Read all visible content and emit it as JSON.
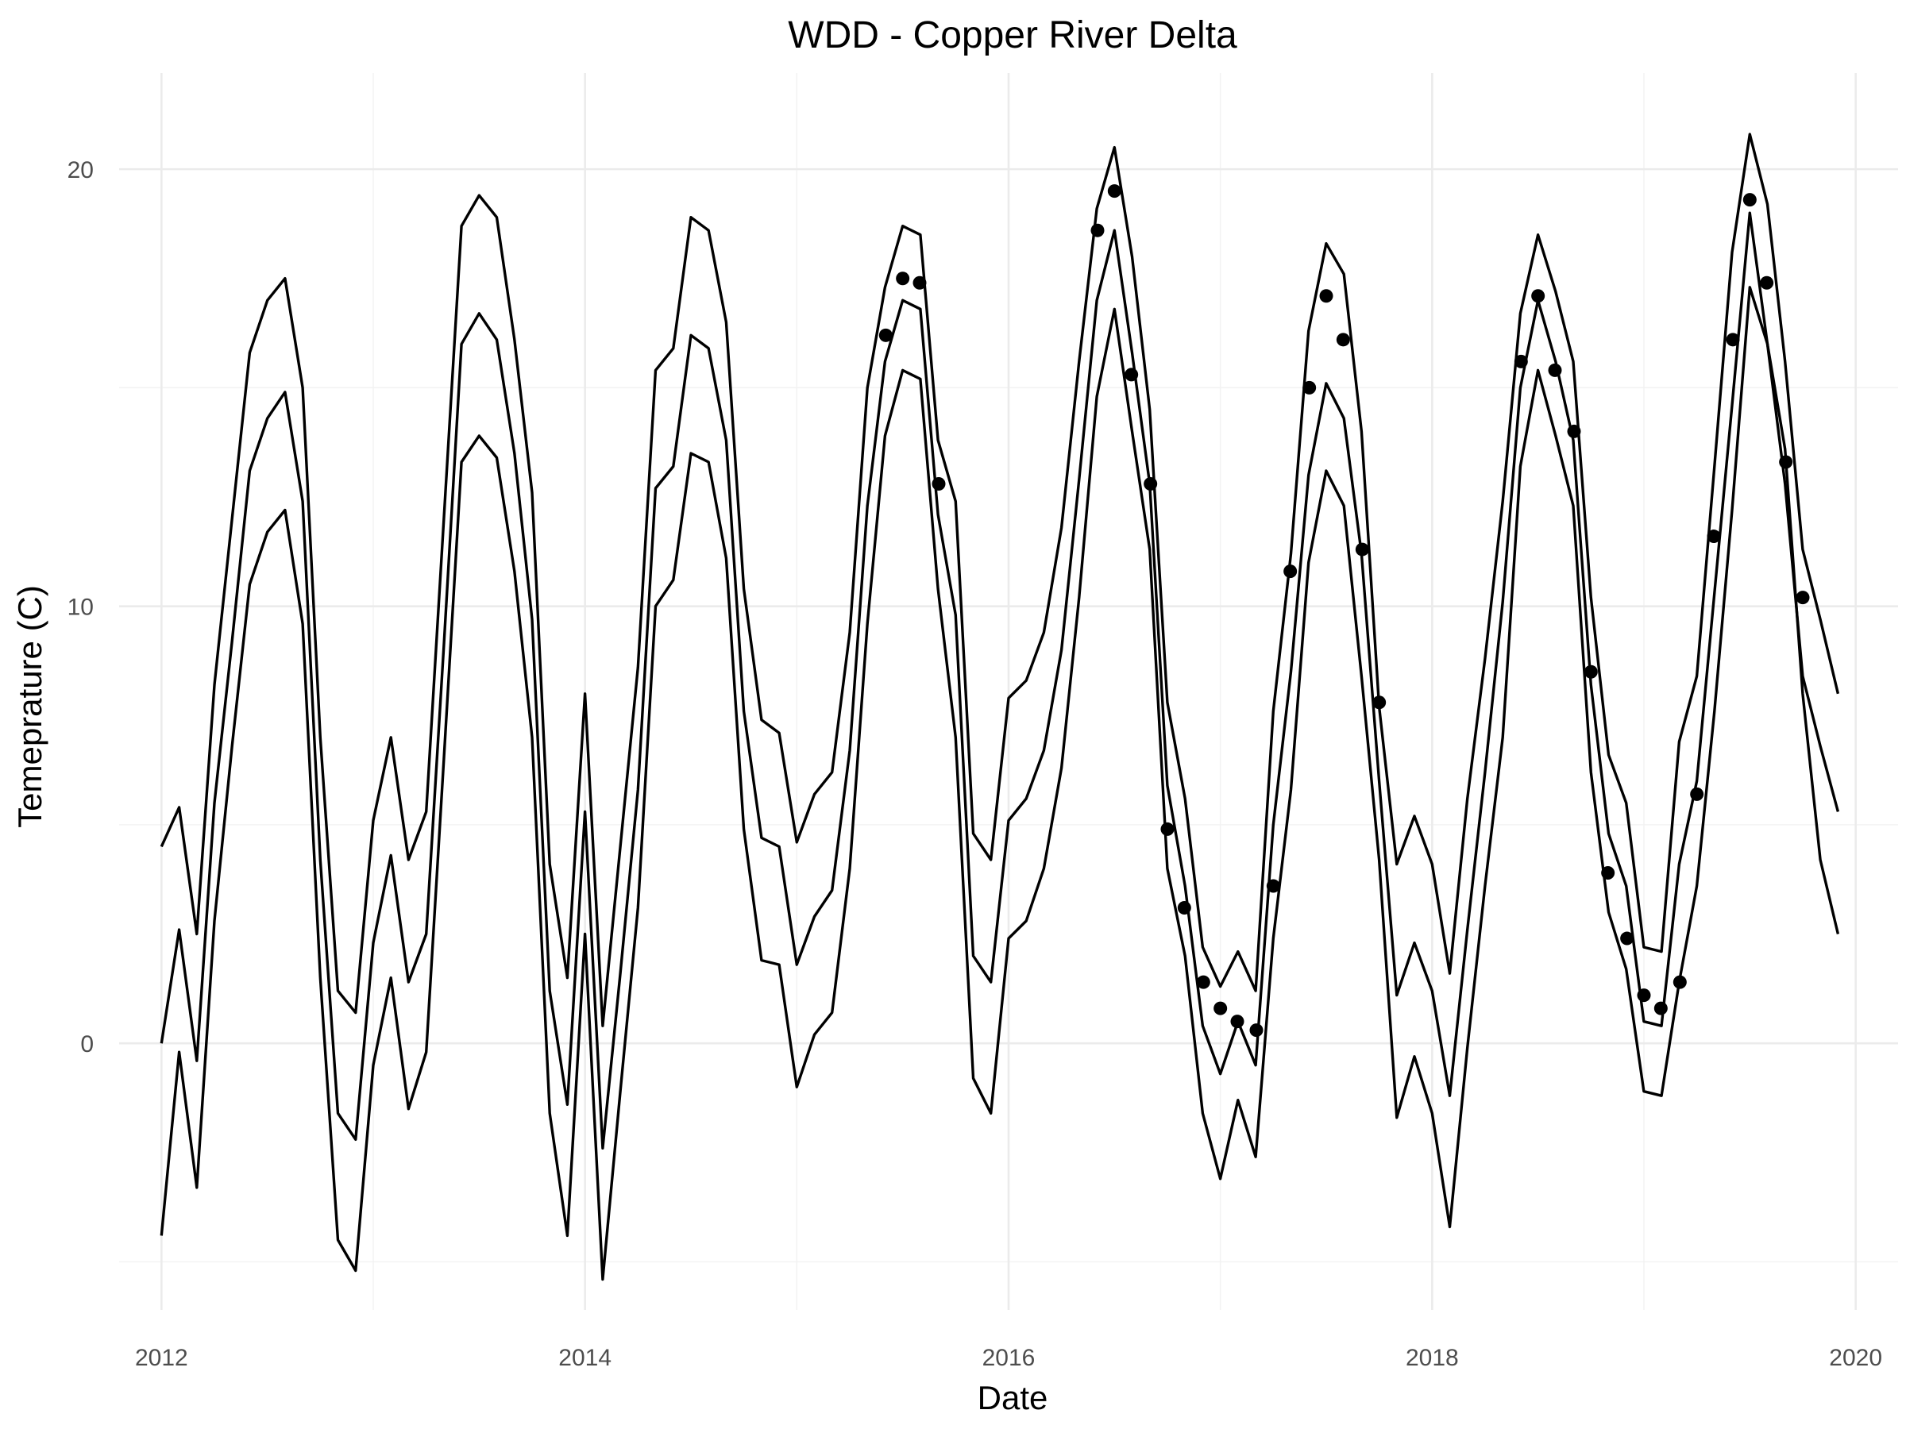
{
  "chart_data": {
    "type": "line",
    "title": "WDD - Copper River Delta",
    "xlabel": "Date",
    "ylabel": "Temeprature (C)",
    "x_ticks": [
      "2012",
      "2014",
      "2016",
      "2018",
      "2020"
    ],
    "y_ticks": [
      "0",
      "10",
      "20"
    ],
    "xlim": [
      2011.8,
      2020.2
    ],
    "ylim": [
      -6.1,
      22.2
    ],
    "grid": true,
    "legend": "none",
    "x_start": 2012.0,
    "x_step": 0.08333,
    "series": [
      {
        "values": [
          4.5,
          5.4,
          2.5,
          8.2,
          12.0,
          15.8,
          17.0,
          17.5,
          15.0,
          7.0,
          1.2,
          0.7,
          5.1,
          7.0,
          4.2,
          5.3,
          12.0,
          18.7,
          19.4,
          18.9,
          16.1,
          12.6,
          4.1,
          1.5,
          8.0,
          0.4,
          4.5,
          8.6,
          15.4,
          15.9,
          18.9,
          18.6,
          16.5,
          10.4,
          7.4,
          7.1,
          4.6,
          5.7,
          6.2,
          9.4,
          15.0,
          17.3,
          18.7,
          18.5,
          13.8,
          12.4,
          4.8,
          4.2,
          7.9,
          8.3,
          9.4,
          11.8,
          15.6,
          19.1,
          20.5,
          18.0,
          14.5,
          7.8,
          5.6,
          2.2,
          1.3,
          2.1,
          1.2,
          7.6,
          11.2,
          16.3,
          18.3,
          17.6,
          14.0,
          7.7,
          4.1,
          5.2,
          4.1,
          1.6,
          5.6,
          8.8,
          12.4,
          16.7,
          18.5,
          17.2,
          15.6,
          10.2,
          6.6,
          5.5,
          2.2,
          2.1,
          6.9,
          8.4,
          13.2,
          18.1,
          20.8,
          19.2,
          15.6,
          11.3,
          9.7,
          8.0
        ]
      },
      {
        "values": [
          0.0,
          2.6,
          -0.4,
          5.5,
          9.2,
          13.1,
          14.3,
          14.9,
          12.4,
          4.2,
          -1.6,
          -2.2,
          2.3,
          4.3,
          1.4,
          2.5,
          9.1,
          16.0,
          16.7,
          16.1,
          13.5,
          9.7,
          1.2,
          -1.4,
          5.3,
          -2.4,
          1.6,
          5.8,
          12.7,
          13.2,
          16.2,
          15.9,
          13.8,
          7.6,
          4.7,
          4.5,
          1.8,
          2.9,
          3.5,
          6.7,
          12.3,
          15.6,
          17.0,
          16.8,
          12.1,
          9.8,
          2.0,
          1.4,
          5.1,
          5.6,
          6.7,
          9.0,
          12.9,
          17.0,
          18.6,
          15.8,
          12.8,
          5.9,
          3.6,
          0.4,
          -0.7,
          0.5,
          -0.5,
          5.0,
          8.5,
          13.0,
          15.1,
          14.3,
          11.2,
          6.0,
          1.1,
          2.3,
          1.2,
          -1.2,
          2.6,
          6.2,
          10.1,
          15.0,
          17.0,
          15.6,
          13.8,
          8.2,
          4.8,
          3.6,
          0.5,
          0.4,
          4.1,
          6.0,
          10.3,
          14.6,
          19.0,
          16.0,
          12.8,
          8.4,
          6.8,
          5.3
        ]
      },
      {
        "values": [
          -4.4,
          -0.2,
          -3.3,
          2.8,
          6.8,
          10.5,
          11.7,
          12.2,
          9.6,
          1.5,
          -4.5,
          -5.2,
          -0.5,
          1.5,
          -1.5,
          -0.2,
          6.5,
          13.3,
          13.9,
          13.4,
          10.8,
          7.0,
          -1.6,
          -4.4,
          2.5,
          -5.4,
          -1.1,
          3.1,
          10.0,
          10.6,
          13.5,
          13.3,
          11.1,
          4.9,
          1.9,
          1.8,
          -1.0,
          0.2,
          0.7,
          4.0,
          9.6,
          13.9,
          15.4,
          15.2,
          10.4,
          7.0,
          -0.8,
          -1.6,
          2.4,
          2.8,
          4.0,
          6.3,
          10.2,
          14.8,
          16.8,
          14.0,
          11.3,
          4.0,
          2.0,
          -1.6,
          -3.1,
          -1.3,
          -2.6,
          2.4,
          5.8,
          11.0,
          13.1,
          12.3,
          8.4,
          4.2,
          -1.7,
          -0.3,
          -1.6,
          -4.2,
          -0.1,
          3.6,
          7.0,
          13.2,
          15.4,
          13.9,
          12.3,
          6.2,
          3.0,
          1.7,
          -1.1,
          -1.2,
          1.4,
          3.6,
          7.6,
          12.2,
          17.3,
          16.0,
          13.6,
          8.0,
          4.2,
          2.5
        ]
      }
    ],
    "points": {
      "x": [
        2015.42,
        2015.5,
        2015.58,
        2015.67,
        2016.42,
        2016.5,
        2016.58,
        2016.67,
        2016.75,
        2016.83,
        2016.92,
        2017.0,
        2017.08,
        2017.17,
        2017.25,
        2017.33,
        2017.42,
        2017.5,
        2017.58,
        2017.67,
        2017.75,
        2018.42,
        2018.5,
        2018.58,
        2018.67,
        2018.75,
        2018.83,
        2018.92,
        2019.0,
        2019.08,
        2019.17,
        2019.25,
        2019.33,
        2019.42,
        2019.5,
        2019.58,
        2019.67,
        2019.75
      ],
      "y": [
        16.2,
        17.5,
        17.4,
        12.8,
        18.6,
        19.5,
        15.3,
        12.8,
        4.9,
        3.1,
        1.4,
        0.8,
        0.5,
        0.3,
        3.6,
        10.8,
        15.0,
        17.1,
        16.1,
        11.3,
        7.8,
        15.6,
        17.1,
        15.4,
        14.0,
        8.5,
        3.9,
        2.4,
        1.1,
        0.8,
        1.4,
        5.7,
        11.6,
        16.1,
        19.3,
        17.4,
        13.3,
        10.2
      ]
    }
  }
}
